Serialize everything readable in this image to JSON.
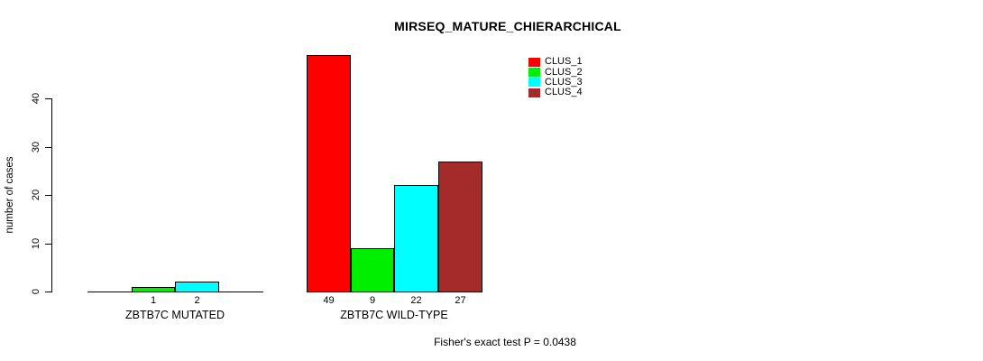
{
  "chart_data": {
    "type": "bar",
    "title": "MIRSEQ_MATURE_CHIERARCHICAL",
    "ylabel": "number of cases",
    "xlabel": "",
    "yticks": [
      0,
      10,
      20,
      30,
      40
    ],
    "ylim": [
      0,
      49
    ],
    "grid": false,
    "legend_position": "top-right-inside",
    "series": [
      {
        "name": "CLUS_1",
        "color": "#FF0000"
      },
      {
        "name": "CLUS_2",
        "color": "#00EE00"
      },
      {
        "name": "CLUS_3",
        "color": "#00FFFF"
      },
      {
        "name": "CLUS_4",
        "color": "#A52A2A"
      }
    ],
    "groups": [
      {
        "label": "ZBTB7C MUTATED",
        "values": [
          0,
          1,
          2,
          0
        ],
        "value_labels": [
          "",
          "1",
          "2",
          ""
        ]
      },
      {
        "label": "ZBTB7C WILD-TYPE",
        "values": [
          49,
          9,
          22,
          27
        ],
        "value_labels": [
          "49",
          "9",
          "22",
          "27"
        ]
      }
    ],
    "annotation": "Fisher's exact test P = 0.0438"
  }
}
